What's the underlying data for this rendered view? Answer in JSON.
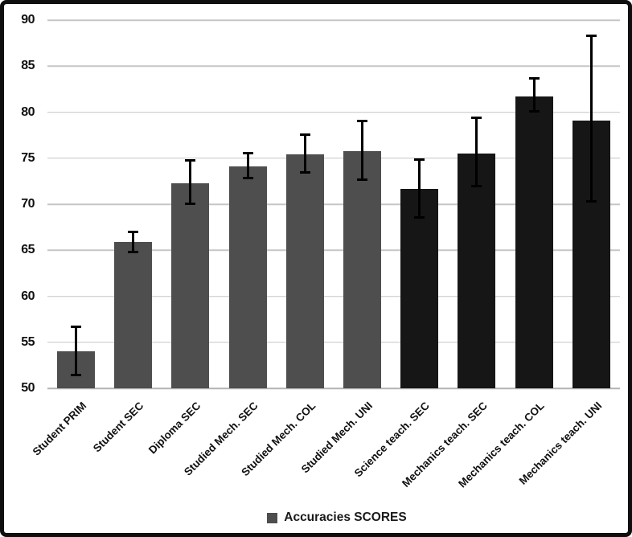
{
  "chart": {
    "legend_label": "Accuracies SCORES",
    "colors": {
      "gray": "#4e4e4e",
      "black": "#161616",
      "gridline": "#c6c6c6",
      "error_bar": "#000000",
      "frame_border": "#0f0f0f",
      "legend_marker": "#4e4e4e"
    }
  },
  "chart_data": {
    "type": "bar",
    "title": "",
    "xlabel": "",
    "ylabel": "",
    "categories": [
      "Student PRIM",
      "Student SEC",
      "Diploma SEC",
      "Studied Mech. SEC",
      "Studied Mech. COL",
      "Studied Mech. UNI",
      "Science teach. SEC",
      "Mechanics teach. SEC",
      "Mechanics teach. COL",
      "Mechanics teach. UNI"
    ],
    "series": [
      {
        "name": "Accuracies SCORES",
        "values": [
          54.0,
          65.9,
          72.3,
          74.1,
          75.4,
          75.8,
          71.7,
          75.5,
          81.7,
          79.1
        ],
        "error_low": [
          51.4,
          64.8,
          70.0,
          72.8,
          73.4,
          72.6,
          68.5,
          71.9,
          80.0,
          70.3
        ],
        "error_high": [
          56.7,
          67.0,
          74.8,
          75.6,
          77.6,
          79.1,
          74.9,
          79.4,
          83.7,
          88.3
        ],
        "bar_styles": [
          "gray",
          "gray",
          "gray",
          "gray",
          "gray",
          "gray",
          "black",
          "black",
          "black",
          "black"
        ]
      }
    ],
    "ylim": [
      50,
      90
    ],
    "yticks": [
      50,
      55,
      60,
      65,
      70,
      75,
      80,
      85,
      90
    ],
    "grid": true,
    "error_bars": true,
    "legend_position": "bottom",
    "x_label_rotation_deg": 45
  }
}
